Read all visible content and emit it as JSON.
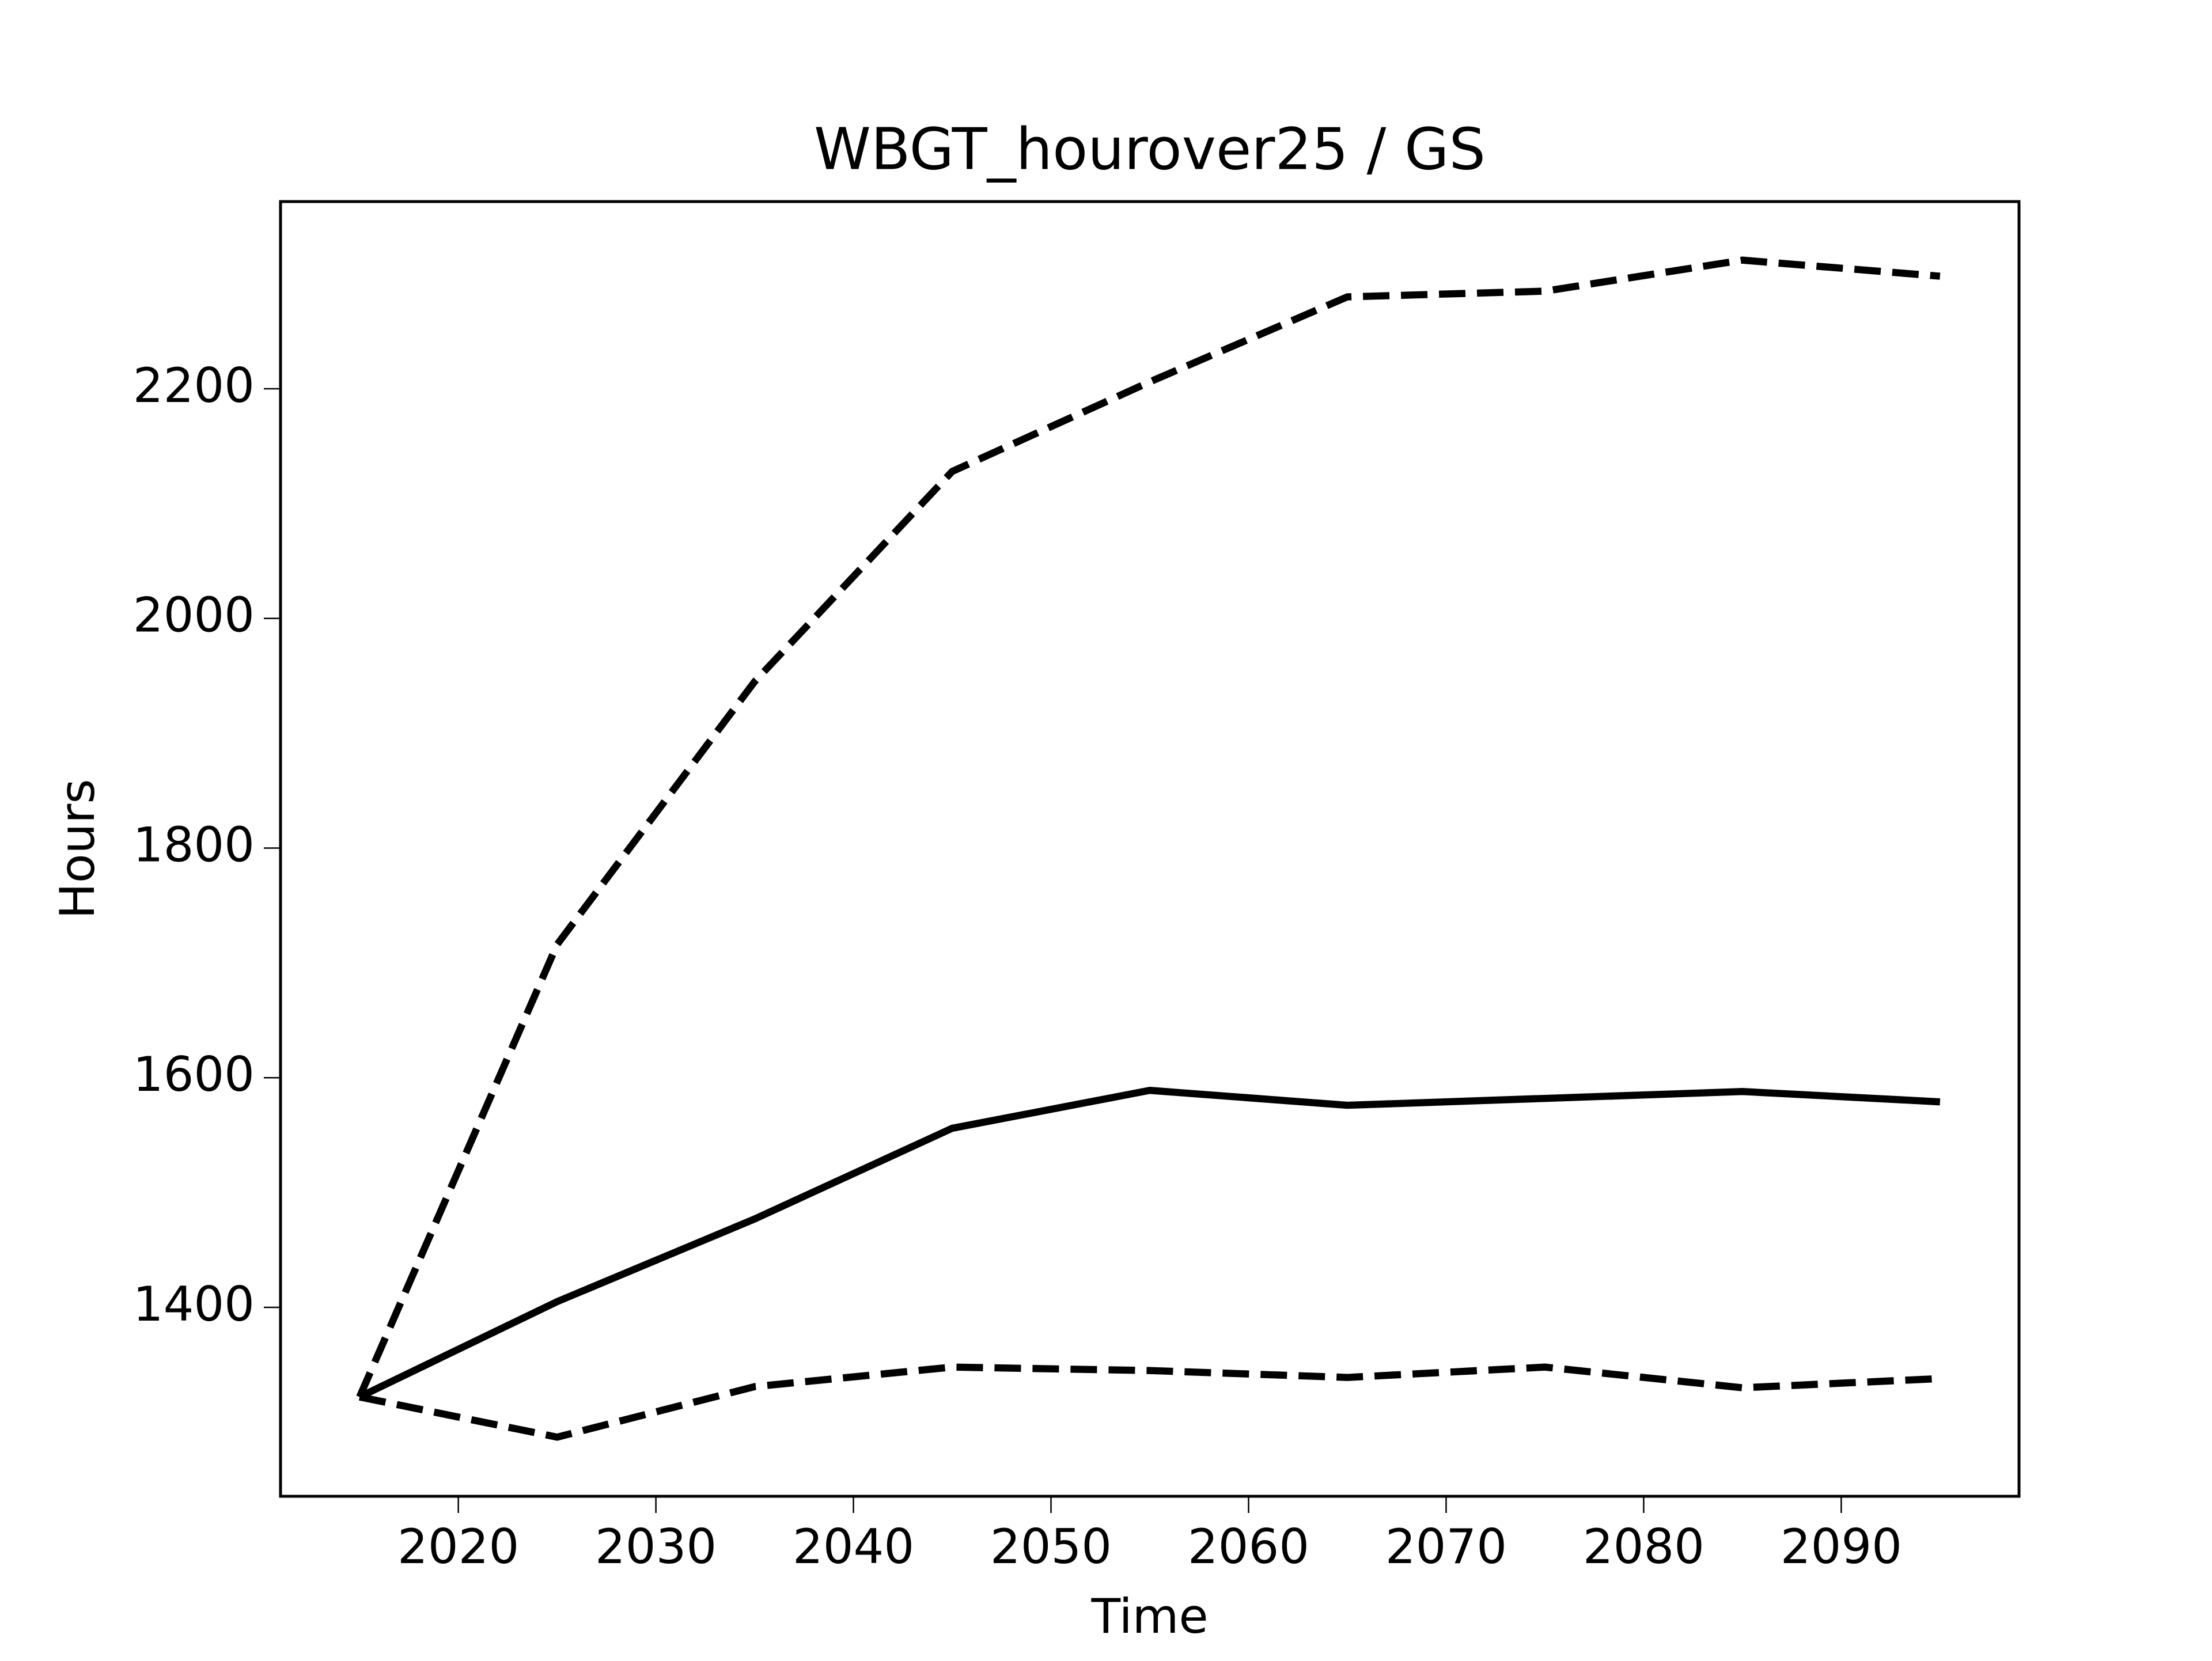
{
  "chart_data": {
    "type": "line",
    "title": "WBGT_hourover25 / GS",
    "xlabel": "Time",
    "ylabel": "Hours",
    "x": [
      2015,
      2025,
      2035,
      2045,
      2055,
      2065,
      2075,
      2085,
      2095
    ],
    "series": [
      {
        "color": "#000000",
        "linestyle": "solid",
        "values": [
          1322,
          1405,
          1477,
          1556,
          1589,
          1576,
          1582,
          1588,
          1579
        ]
      },
      {
        "color": "#000000",
        "linestyle": "dashed",
        "values": [
          1322,
          1716,
          1945,
          2128,
          2206,
          2280,
          2285,
          2312,
          2298
        ]
      },
      {
        "color": "#000000",
        "linestyle": "dashed",
        "values": [
          1322,
          1287,
          1331,
          1348,
          1345,
          1339,
          1348,
          1330,
          1338
        ]
      }
    ],
    "xlim": [
      2011,
      2099
    ],
    "xticks": [
      2020,
      2030,
      2040,
      2050,
      2060,
      2070,
      2080,
      2090
    ],
    "ylim": [
      1235.5,
      2363
    ],
    "yticks": [
      1400,
      1600,
      1800,
      2000,
      2200
    ],
    "grid": false
  }
}
